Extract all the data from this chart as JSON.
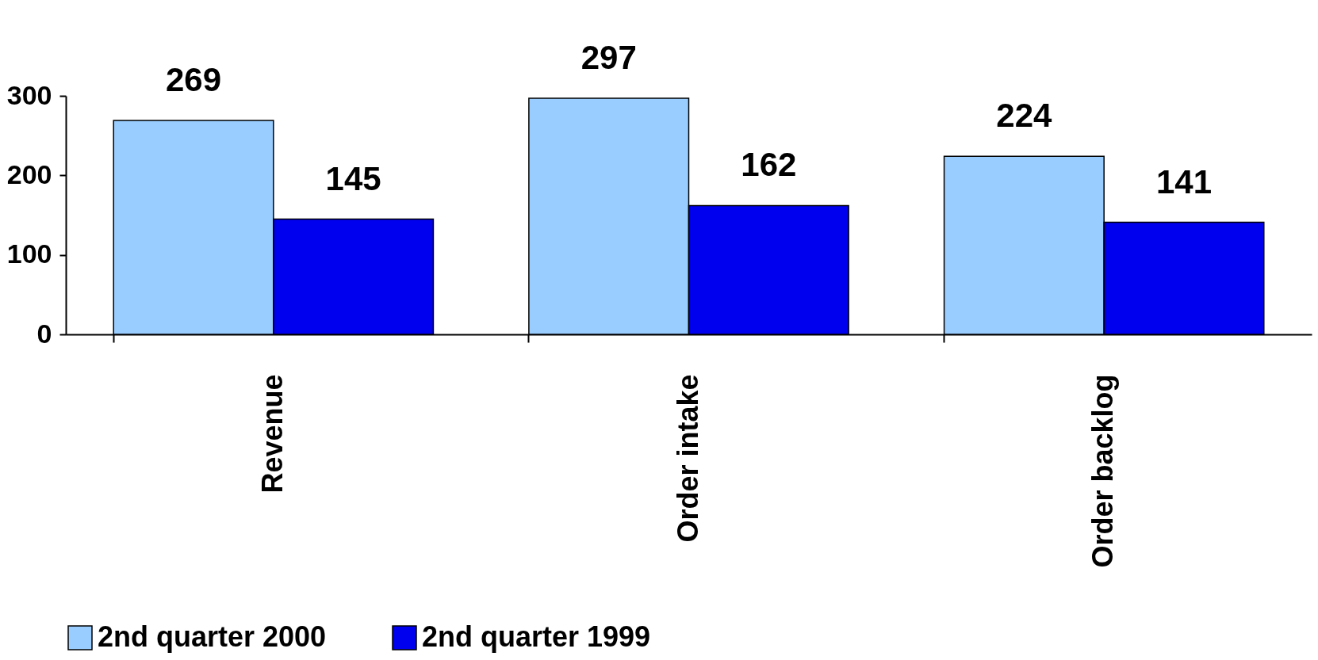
{
  "chart_data": {
    "type": "bar",
    "categories": [
      "Revenue",
      "Order intake",
      "Order backlog"
    ],
    "series": [
      {
        "name": "2nd quarter 2000",
        "color": "#99ccff",
        "values": [
          269,
          297,
          224
        ]
      },
      {
        "name": "2nd quarter 1999",
        "color": "#0000ee",
        "values": [
          145,
          162,
          141
        ]
      }
    ],
    "ylim": [
      0,
      300
    ],
    "yticks": [
      0,
      100,
      200,
      300
    ],
    "grid": false,
    "legend": "bottom",
    "data_labels": true
  }
}
